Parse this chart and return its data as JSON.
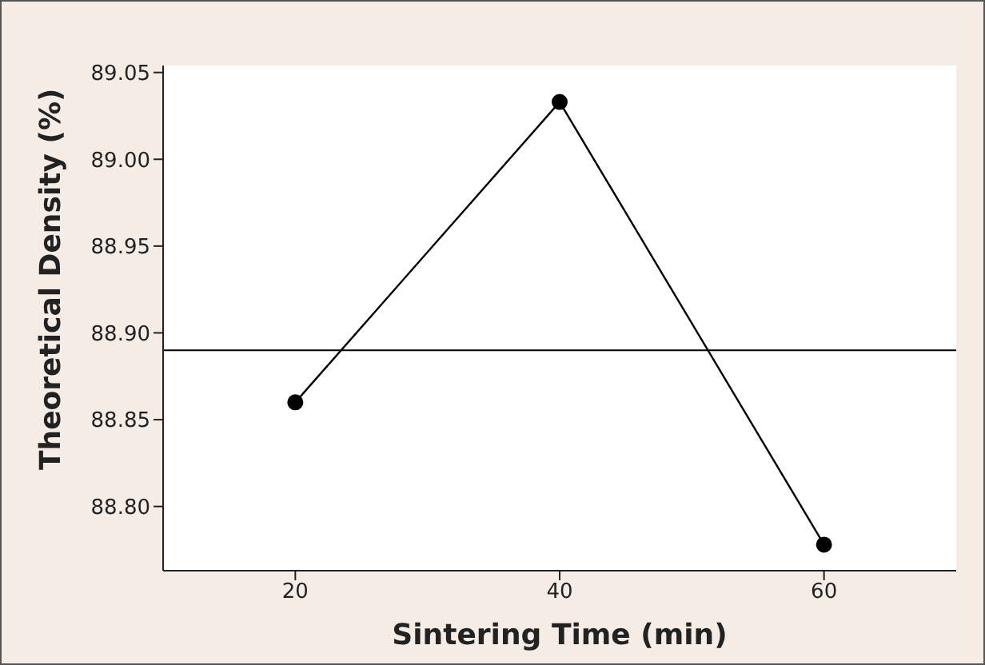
{
  "chart_data": {
    "type": "line",
    "xlabel": "Sintering Time (min)",
    "ylabel": "Theoretical Density (%)",
    "x": [
      20,
      40,
      60
    ],
    "series": [
      {
        "color": "#000000",
        "values": [
          88.86,
          89.033,
          88.778
        ]
      }
    ],
    "xlim": [
      10,
      70
    ],
    "xticks": [
      20,
      40,
      60
    ],
    "ylim": [
      88.763,
      89.054
    ],
    "yticks": [
      {
        "value": 88.8,
        "label": "88.80"
      },
      88.85,
      {
        "value": 88.9,
        "label": "88.90"
      },
      88.95,
      {
        "value": 89.0,
        "label": "89.00"
      },
      89.05
    ],
    "ref_lines": [
      {
        "axis": "y",
        "value": 88.89,
        "color": "#000000"
      }
    ],
    "marker": "circle",
    "line_style": "solid"
  }
}
